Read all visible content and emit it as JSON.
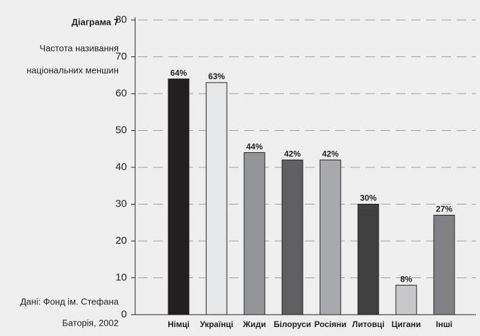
{
  "chart_data": {
    "type": "bar",
    "title": "Діаграма 7",
    "subtitle": [
      "Частота називання",
      "національних меншин"
    ],
    "source": [
      "Дані: Фонд ім. Стефана",
      "Баторія, 2002"
    ],
    "categories": [
      "Німці",
      "Українці",
      "Жиди",
      "Білоруси",
      "Росіяни",
      "Литовці",
      "Цигани",
      "Інші"
    ],
    "values": [
      64,
      63,
      44,
      42,
      42,
      30,
      8,
      27
    ],
    "value_labels": [
      "64%",
      "63%",
      "44%",
      "42%",
      "42%",
      "30%",
      "8%",
      "27%"
    ],
    "colors": [
      "#231f20",
      "#e6e7e8",
      "#939598",
      "#5f6062",
      "#a7a9ac",
      "#404041",
      "#c7c8ca",
      "#808285"
    ],
    "ylim": [
      0,
      80
    ],
    "yticks": [
      0,
      10,
      20,
      30,
      40,
      50,
      60,
      70,
      80
    ],
    "grid": true
  }
}
